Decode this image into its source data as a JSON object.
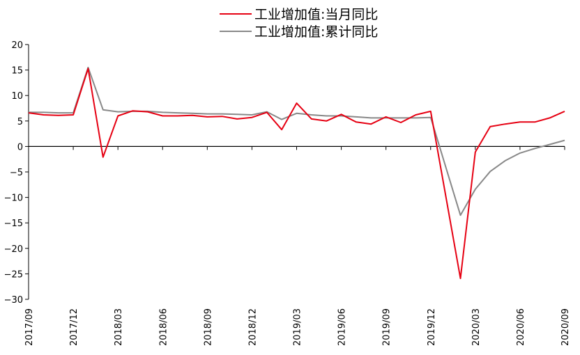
{
  "chart_data": {
    "type": "line",
    "title": "",
    "xlabel": "",
    "ylabel": "",
    "ylim": [
      -30,
      20
    ],
    "yticks": [
      20,
      15,
      10,
      5,
      0,
      -5,
      -10,
      -15,
      -20,
      -25,
      -30
    ],
    "legend_position": "top-center",
    "x": [
      "2017/09",
      "2017/10",
      "2017/11",
      "2017/12",
      "2018/01",
      "2018/02",
      "2018/03",
      "2018/04",
      "2018/05",
      "2018/06",
      "2018/07",
      "2018/08",
      "2018/09",
      "2018/10",
      "2018/11",
      "2018/12",
      "2019/01",
      "2019/02",
      "2019/03",
      "2019/04",
      "2019/05",
      "2019/06",
      "2019/07",
      "2019/08",
      "2019/09",
      "2019/10",
      "2019/11",
      "2019/12",
      "2020/01",
      "2020/02",
      "2020/03",
      "2020/04",
      "2020/05",
      "2020/06",
      "2020/07",
      "2020/08",
      "2020/09"
    ],
    "x_tick_labels": [
      "2017/09",
      "2017/12",
      "2018/03",
      "2018/06",
      "2018/09",
      "2018/12",
      "2019/03",
      "2019/06",
      "2019/09",
      "2019/12",
      "2020/03",
      "2020/06",
      "2020/09"
    ],
    "series": [
      {
        "name": "工业增加值:当月同比",
        "color": "#e60012",
        "values": [
          6.6,
          6.2,
          6.1,
          6.2,
          15.3,
          -2.1,
          6.0,
          7.0,
          6.8,
          6.0,
          6.0,
          6.1,
          5.8,
          5.9,
          5.4,
          5.7,
          6.7,
          3.3,
          8.5,
          5.4,
          5.0,
          6.3,
          4.8,
          4.4,
          5.8,
          4.7,
          6.2,
          6.9,
          null,
          -25.9,
          -1.1,
          3.9,
          4.4,
          4.8,
          4.8,
          5.6,
          6.9
        ]
      },
      {
        "name": "工业增加值:累计同比",
        "color": "#888888",
        "values": [
          6.7,
          6.7,
          6.6,
          6.6,
          15.5,
          7.2,
          6.8,
          6.9,
          6.9,
          6.7,
          6.6,
          6.5,
          6.4,
          6.4,
          6.3,
          6.2,
          6.8,
          5.3,
          6.5,
          6.2,
          6.0,
          6.0,
          5.8,
          5.6,
          5.6,
          5.6,
          5.6,
          5.7,
          null,
          -13.5,
          -8.4,
          -4.9,
          -2.8,
          -1.3,
          -0.4,
          0.4,
          1.2
        ]
      }
    ]
  }
}
